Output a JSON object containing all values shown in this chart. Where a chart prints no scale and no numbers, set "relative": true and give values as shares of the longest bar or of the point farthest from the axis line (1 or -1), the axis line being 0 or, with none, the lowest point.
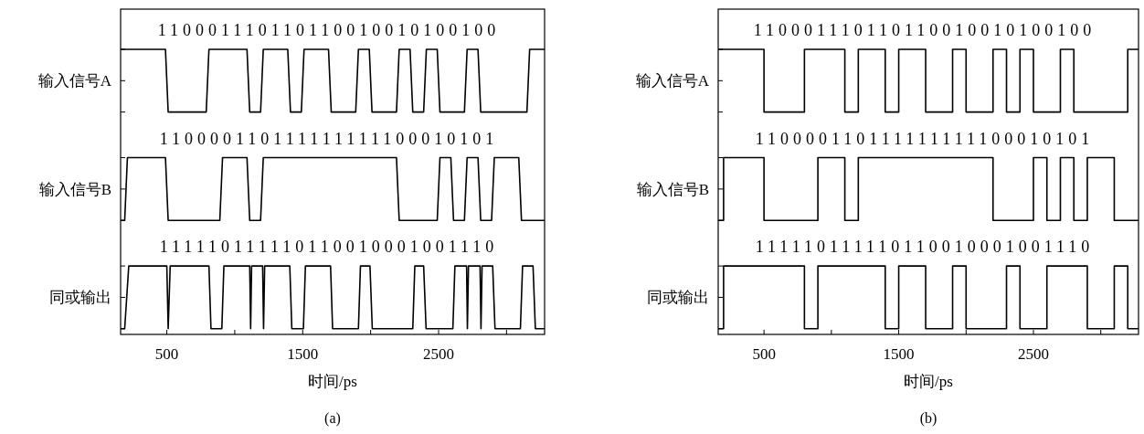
{
  "chart_data": [
    {
      "type": "line",
      "title": "(a)",
      "xlabel": "时间/ps",
      "relative": true,
      "legend": "left",
      "xlim": [
        160,
        3280
      ],
      "xticks": [
        500,
        {
          "value": 1000,
          "label": null
        },
        1500,
        {
          "value": 2000,
          "label": null
        },
        2500,
        {
          "value": 3000,
          "label": null
        }
      ],
      "series": [
        {
          "name": "输入信号A",
          "color": "#000000",
          "x": [
            160,
            490,
            510,
            790,
            810,
            1090,
            1110,
            1190,
            1210,
            1390,
            1410,
            1490,
            1510,
            1690,
            1710,
            1890,
            1910,
            1990,
            2010,
            2190,
            2210,
            2290,
            2310,
            2390,
            2410,
            2490,
            2510,
            2690,
            2710,
            2790,
            2810,
            3150,
            3170,
            3280
          ],
          "values": [
            1,
            1,
            0.78,
            0.78,
            1,
            1,
            0.78,
            0.78,
            1,
            1,
            0.78,
            0.78,
            1,
            1,
            0.78,
            0.78,
            1,
            1,
            0.78,
            0.78,
            1,
            1,
            0.78,
            0.78,
            1,
            1,
            0.78,
            0.78,
            1,
            1,
            0.78,
            0.78,
            1,
            1
          ]
        },
        {
          "name": "输入信号B",
          "color": "#000000",
          "x": [
            160,
            190,
            210,
            490,
            510,
            890,
            910,
            1090,
            1110,
            1190,
            1210,
            2190,
            2210,
            2490,
            2510,
            2590,
            2610,
            2690,
            2710,
            2790,
            2810,
            2890,
            2910,
            3090,
            3110,
            3280
          ],
          "values": [
            0.4,
            0.4,
            0.62,
            0.62,
            0.4,
            0.4,
            0.62,
            0.62,
            0.4,
            0.4,
            0.62,
            0.62,
            0.4,
            0.4,
            0.62,
            0.62,
            0.4,
            0.4,
            0.62,
            0.62,
            0.4,
            0.4,
            0.62,
            0.62,
            0.4,
            0.4
          ]
        },
        {
          "name": "同或输出",
          "color": "#000000",
          "x": [
            160,
            190,
            220,
            500,
            510,
            525,
            810,
            825,
            905,
            920,
            1110,
            1117,
            1124,
            1205,
            1212,
            1220,
            1405,
            1420,
            1505,
            1520,
            1705,
            1720,
            1910,
            1925,
            1995,
            2012,
            2310,
            2325,
            2390,
            2408,
            2605,
            2620,
            2706,
            2712,
            2720,
            2805,
            2812,
            2820,
            2898,
            2915,
            3102,
            3118,
            3195,
            3212,
            3280
          ],
          "values": [
            0.02,
            0.02,
            0.24,
            0.24,
            0.02,
            0.24,
            0.24,
            0.02,
            0.02,
            0.24,
            0.24,
            0.02,
            0.24,
            0.24,
            0.02,
            0.24,
            0.24,
            0.02,
            0.02,
            0.24,
            0.24,
            0.02,
            0.02,
            0.24,
            0.24,
            0.02,
            0.02,
            0.24,
            0.24,
            0.02,
            0.02,
            0.24,
            0.24,
            0.02,
            0.24,
            0.24,
            0.02,
            0.24,
            0.24,
            0.02,
            0.02,
            0.24,
            0.24,
            0.02,
            0.02
          ]
        }
      ],
      "annotations": [
        "110001110110110010010100100",
        "110000110111111111100010101",
        "111110111110110010001001110"
      ]
    },
    {
      "type": "step",
      "title": "(b)",
      "xlabel": "时间/ps",
      "relative": true,
      "legend": "left",
      "xlim": [
        160,
        3280
      ],
      "xticks": [
        500,
        {
          "value": 1000,
          "label": null
        },
        1500,
        {
          "value": 2000,
          "label": null
        },
        2500,
        {
          "value": 3000,
          "label": null
        }
      ],
      "series": [
        {
          "name": "输入信号A",
          "color": "#000000",
          "x": [
            160,
            500,
            800,
            1100,
            1200,
            1400,
            1500,
            1700,
            1900,
            2000,
            2200,
            2300,
            2400,
            2500,
            2700,
            2800,
            3200,
            3280
          ],
          "values": [
            1,
            0.78,
            1,
            0.78,
            1,
            0.78,
            1,
            0.78,
            1,
            0.78,
            1,
            0.78,
            1,
            0.78,
            1,
            0.78,
            1,
            1
          ]
        },
        {
          "name": "输入信号B",
          "color": "#000000",
          "x": [
            160,
            200,
            500,
            900,
            1100,
            1200,
            2200,
            2500,
            2600,
            2700,
            2800,
            2900,
            3100,
            3280
          ],
          "values": [
            0.4,
            0.62,
            0.4,
            0.62,
            0.4,
            0.62,
            0.4,
            0.62,
            0.4,
            0.62,
            0.4,
            0.62,
            0.4,
            0.4
          ]
        },
        {
          "name": "同或输出",
          "color": "#000000",
          "x": [
            160,
            200,
            800,
            900,
            1400,
            1500,
            1700,
            1900,
            2000,
            2300,
            2400,
            2600,
            2900,
            3100,
            3200,
            3280
          ],
          "values": [
            0.02,
            0.24,
            0.02,
            0.24,
            0.02,
            0.24,
            0.02,
            0.24,
            0.02,
            0.24,
            0.02,
            0.24,
            0.02,
            0.24,
            0.02,
            0.02
          ]
        }
      ],
      "annotations": [
        "110001110110110010010100100",
        "110000110111111111100010101",
        "111110111110110010001001110"
      ]
    }
  ]
}
